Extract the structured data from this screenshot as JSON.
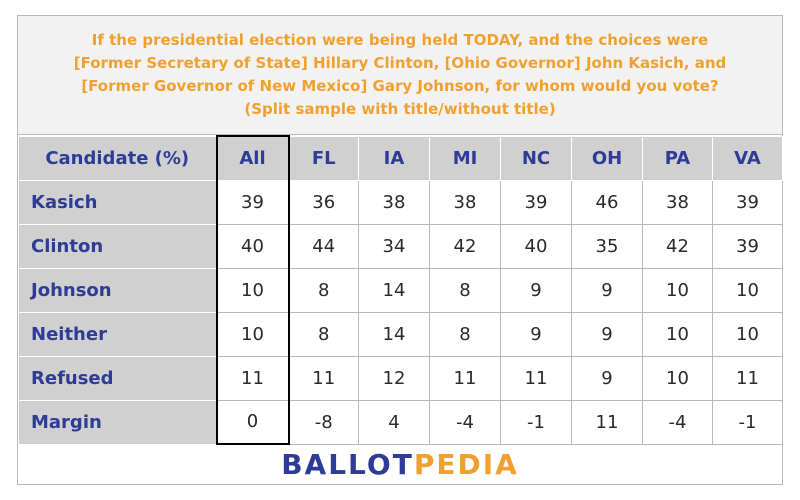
{
  "title_lines": [
    "If the presidential election were being held TODAY, and the choices were",
    "[Former Secretary of State] Hillary Clinton, [Ohio Governor] John Kasich, and",
    "[Former Governor of New Mexico] Gary Johnson, for whom would you vote?",
    "(Split sample with title/without title)"
  ],
  "logo": {
    "part1": "BALLOT",
    "part2": "PEDIA"
  },
  "chart_data": {
    "type": "table",
    "corner_header": "Candidate (%)",
    "columns": [
      "All",
      "FL",
      "IA",
      "MI",
      "NC",
      "OH",
      "PA",
      "VA"
    ],
    "rows": [
      {
        "label": "Kasich",
        "values": [
          "39",
          "36",
          "38",
          "38",
          "39",
          "46",
          "38",
          "39"
        ]
      },
      {
        "label": "Clinton",
        "values": [
          "40",
          "44",
          "34",
          "42",
          "40",
          "35",
          "42",
          "39"
        ]
      },
      {
        "label": "Johnson",
        "values": [
          "10",
          "8",
          "14",
          "8",
          "9",
          "9",
          "10",
          "10"
        ]
      },
      {
        "label": "Neither",
        "values": [
          "10",
          "8",
          "14",
          "8",
          "9",
          "9",
          "10",
          "10"
        ]
      },
      {
        "label": "Refused",
        "values": [
          "11",
          "11",
          "12",
          "11",
          "11",
          "9",
          "10",
          "11"
        ]
      },
      {
        "label": "Margin",
        "values": [
          "0",
          "-8",
          "4",
          "-4",
          "-1",
          "11",
          "-4",
          "-1"
        ]
      }
    ],
    "colors": {
      "title": "#f0a030",
      "header_text": "#2e3b97",
      "header_bg": "#d0d0d0",
      "title_bg": "#f2f2f2",
      "logo_blue": "#2e3b97",
      "logo_orange": "#f0a030"
    }
  }
}
